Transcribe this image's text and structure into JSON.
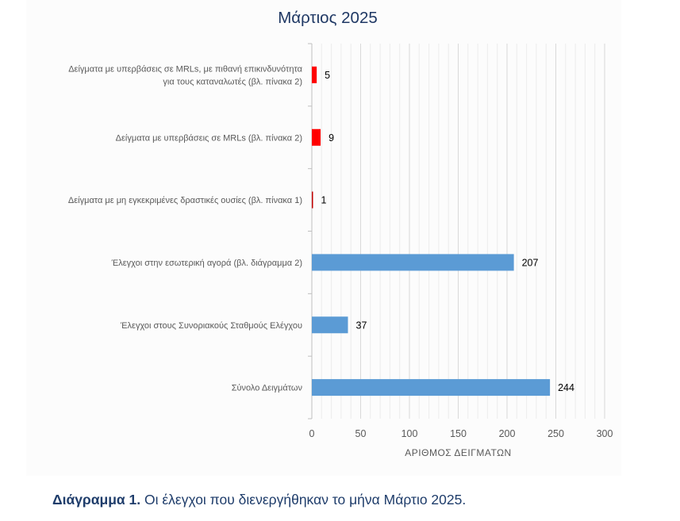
{
  "chart_data": {
    "type": "bar",
    "orientation": "horizontal",
    "title": "Μάρτιος 2025",
    "xlabel": "ΑΡΙΘΜΟΣ ΔΕΙΓΜΑΤΩΝ",
    "ylabel": "",
    "xlim": [
      0,
      300
    ],
    "xticks": [
      0,
      50,
      100,
      150,
      200,
      250,
      300
    ],
    "grid": true,
    "legend": "none",
    "categories": [
      [
        "Δείγματα με υπερβάσεις σε MRLs, με πιθανή επικινδυνότητα",
        "για τους καταναλωτές (βλ. πίνακα 2)"
      ],
      [
        "Δείγματα με υπερβάσεις σε MRLs (βλ. πίνακα 2)"
      ],
      [
        "Δείγματα με μη εγκεκριμένες δραστικές ουσίες (βλ. πίνακα 1)"
      ],
      [
        "Έλεγχοι στην εσωτερική αγορά (βλ. διάγραμμα 2)"
      ],
      [
        "Έλεγχοι στους Συνοριακούς Σταθμούς Ελέγχου"
      ],
      [
        "Σύνολο Δειγμάτων"
      ]
    ],
    "values": [
      5,
      9,
      1,
      207,
      37,
      244
    ],
    "colors": [
      "#ff0000",
      "#ff0000",
      "#c00000",
      "#5b9bd5",
      "#5b9bd5",
      "#5b9bd5"
    ]
  },
  "caption": {
    "label": "Διάγραμμα 1.",
    "text": " Οι έλεγχοι που διενεργήθηκαν το μήνα Μάρτιο 2025."
  }
}
